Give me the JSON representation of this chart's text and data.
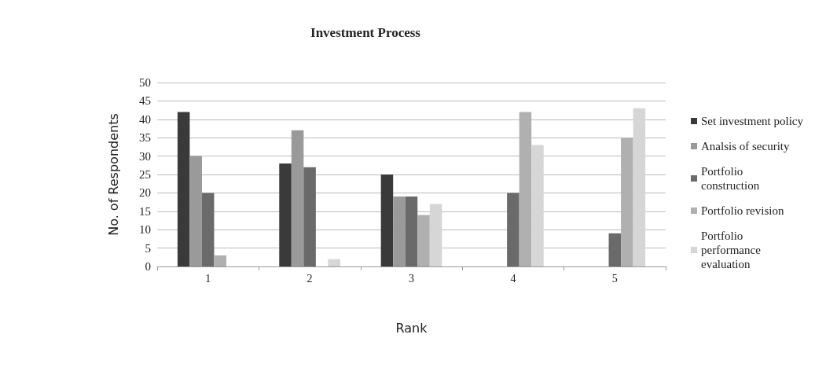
{
  "chart_data": {
    "type": "bar",
    "title": "Investment Process",
    "xlabel": "Rank",
    "ylabel": "No. of Respondents",
    "categories": [
      "1",
      "2",
      "3",
      "4",
      "5"
    ],
    "series": [
      {
        "name": "Set investment policy",
        "color": "#3a3a3a",
        "values": [
          42,
          28,
          25,
          0,
          0
        ]
      },
      {
        "name": "Analsis of security",
        "color": "#9a9a9a",
        "values": [
          30,
          37,
          19,
          0,
          0
        ]
      },
      {
        "name": "Portfolio construction",
        "color": "#6a6a6a",
        "values": [
          20,
          27,
          19,
          20,
          9
        ]
      },
      {
        "name": "Portfolio revision",
        "color": "#b0b0b0",
        "values": [
          3,
          0,
          14,
          42,
          35
        ]
      },
      {
        "name": "Portfolio performance evaluation",
        "color": "#d6d6d6",
        "values": [
          0,
          2,
          17,
          33,
          43
        ]
      }
    ],
    "ylim": [
      0,
      50
    ],
    "yticks": [
      0,
      5,
      10,
      15,
      20,
      25,
      30,
      35,
      40,
      45,
      50
    ],
    "grid": "y",
    "legend": "right"
  }
}
